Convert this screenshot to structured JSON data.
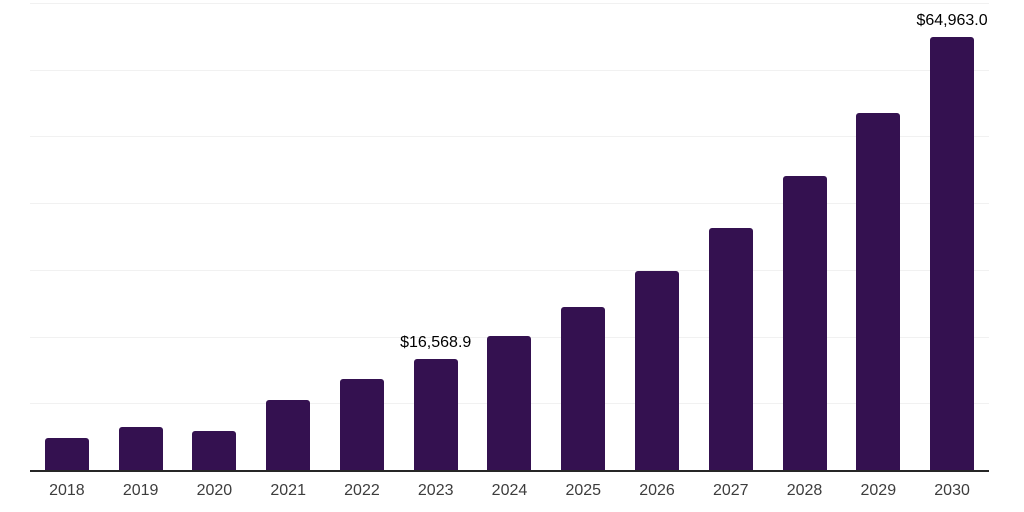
{
  "chart_data": {
    "type": "bar",
    "title": "",
    "xlabel": "",
    "ylabel": "",
    "categories": [
      "2018",
      "2019",
      "2020",
      "2021",
      "2022",
      "2023",
      "2024",
      "2025",
      "2026",
      "2027",
      "2028",
      "2029",
      "2030"
    ],
    "values": [
      4800,
      6400,
      5900,
      10500,
      13600,
      16568.9,
      20100,
      24500,
      29800,
      36200,
      44000,
      53500,
      64963.0
    ],
    "value_labels": [
      null,
      null,
      null,
      null,
      null,
      "$16,568.9",
      null,
      null,
      null,
      null,
      null,
      null,
      "$64,963.0"
    ],
    "ylim": [
      0,
      70000
    ],
    "gridline_interval": 10000,
    "grid": true,
    "y_axis_tick_labels_visible": false,
    "legend_position": "none",
    "bar_color": "#341150",
    "background_color": "#ffffff",
    "axis_line_color": "#262626",
    "gridline_color": "#f1f1f1",
    "tick_label_color": "#3d3d3d",
    "data_label_color": "#000000"
  }
}
